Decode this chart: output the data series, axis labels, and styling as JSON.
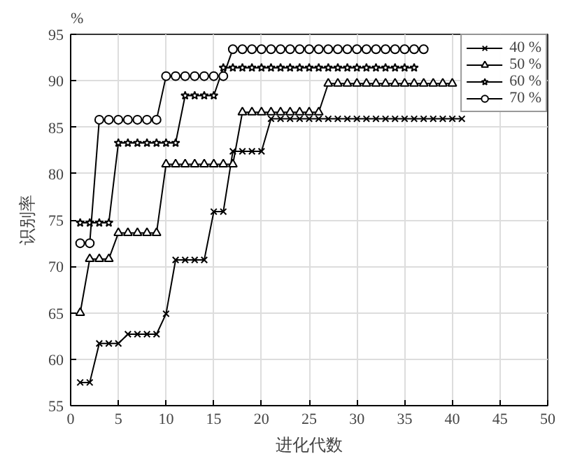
{
  "chart_data": {
    "type": "line",
    "xlabel": "进化代数",
    "ylabel": "识别率",
    "annotations": [
      "%"
    ],
    "xlim": [
      0,
      50
    ],
    "ylim": [
      55,
      95
    ],
    "xticks": [
      0,
      5,
      10,
      15,
      20,
      25,
      30,
      35,
      40,
      45,
      50
    ],
    "yticks": [
      55,
      60,
      65,
      70,
      75,
      80,
      85,
      90,
      95
    ],
    "grid": true,
    "legend": "top right",
    "line_style": "solid",
    "series": [
      {
        "name": "40 %",
        "color": "#000000",
        "marker": "cross",
        "x": [
          1,
          2,
          3,
          4,
          5,
          6,
          7,
          8,
          9,
          10,
          11,
          12,
          13,
          14,
          15,
          16,
          17,
          18,
          19,
          20,
          21,
          22,
          23,
          24,
          25,
          26,
          27,
          28,
          29,
          30,
          31,
          32,
          33,
          34,
          35,
          36,
          37,
          38,
          39,
          40,
          41
        ],
        "values": [
          57.5,
          57.5,
          61.7,
          61.7,
          61.7,
          62.7,
          62.7,
          62.7,
          62.7,
          64.9,
          70.7,
          70.7,
          70.7,
          70.7,
          75.9,
          75.9,
          82.4,
          82.4,
          82.4,
          82.4,
          85.9,
          85.9,
          85.9,
          85.9,
          85.9,
          85.9,
          85.9,
          85.9,
          85.9,
          85.9,
          85.9,
          85.9,
          85.9,
          85.9,
          85.9,
          85.9,
          85.9,
          85.9,
          85.9,
          85.9,
          85.9
        ]
      },
      {
        "name": "50 %",
        "color": "#000000",
        "marker": "triangle",
        "x": [
          1,
          2,
          3,
          4,
          5,
          6,
          7,
          8,
          9,
          10,
          11,
          12,
          13,
          14,
          15,
          16,
          17,
          18,
          19,
          20,
          21,
          22,
          23,
          24,
          25,
          26,
          27,
          28,
          29,
          30,
          31,
          32,
          33,
          34,
          35,
          36,
          37,
          38,
          39,
          40
        ],
        "values": [
          65,
          70.8,
          70.8,
          70.8,
          73.6,
          73.6,
          73.6,
          73.6,
          73.6,
          81,
          81,
          81,
          81,
          81,
          81,
          81,
          81,
          86.6,
          86.6,
          86.6,
          86.6,
          86.6,
          86.6,
          86.6,
          86.6,
          86.6,
          89.7,
          89.7,
          89.7,
          89.7,
          89.7,
          89.7,
          89.7,
          89.7,
          89.7,
          89.7,
          89.7,
          89.7,
          89.7,
          89.7
        ]
      },
      {
        "name": "60 %",
        "color": "#000000",
        "marker": "star",
        "x": [
          1,
          2,
          3,
          4,
          5,
          6,
          7,
          8,
          9,
          10,
          11,
          12,
          13,
          14,
          15,
          16,
          17,
          18,
          19,
          20,
          21,
          22,
          23,
          24,
          25,
          26,
          27,
          28,
          29,
          30,
          31,
          32,
          33,
          34,
          35,
          36
        ],
        "values": [
          74.7,
          74.7,
          74.7,
          74.7,
          83.3,
          83.3,
          83.3,
          83.3,
          83.3,
          83.3,
          83.3,
          88.4,
          88.4,
          88.4,
          88.4,
          91.4,
          91.4,
          91.4,
          91.4,
          91.4,
          91.4,
          91.4,
          91.4,
          91.4,
          91.4,
          91.4,
          91.4,
          91.4,
          91.4,
          91.4,
          91.4,
          91.4,
          91.4,
          91.4,
          91.4,
          91.4
        ]
      },
      {
        "name": "70 %",
        "color": "#000000",
        "marker": "circle",
        "x": [
          1,
          2,
          3,
          4,
          5,
          6,
          7,
          8,
          9,
          10,
          11,
          12,
          13,
          14,
          15,
          16,
          17,
          18,
          19,
          20,
          21,
          22,
          23,
          24,
          25,
          26,
          27,
          28,
          29,
          30,
          31,
          32,
          33,
          34,
          35,
          36,
          37
        ],
        "values": [
          72.5,
          72.5,
          85.8,
          85.8,
          85.8,
          85.8,
          85.8,
          85.8,
          85.8,
          90.5,
          90.5,
          90.5,
          90.5,
          90.5,
          90.5,
          90.5,
          93.4,
          93.4,
          93.4,
          93.4,
          93.4,
          93.4,
          93.4,
          93.4,
          93.4,
          93.4,
          93.4,
          93.4,
          93.4,
          93.4,
          93.4,
          93.4,
          93.4,
          93.4,
          93.4,
          93.4,
          93.4
        ]
      }
    ]
  }
}
